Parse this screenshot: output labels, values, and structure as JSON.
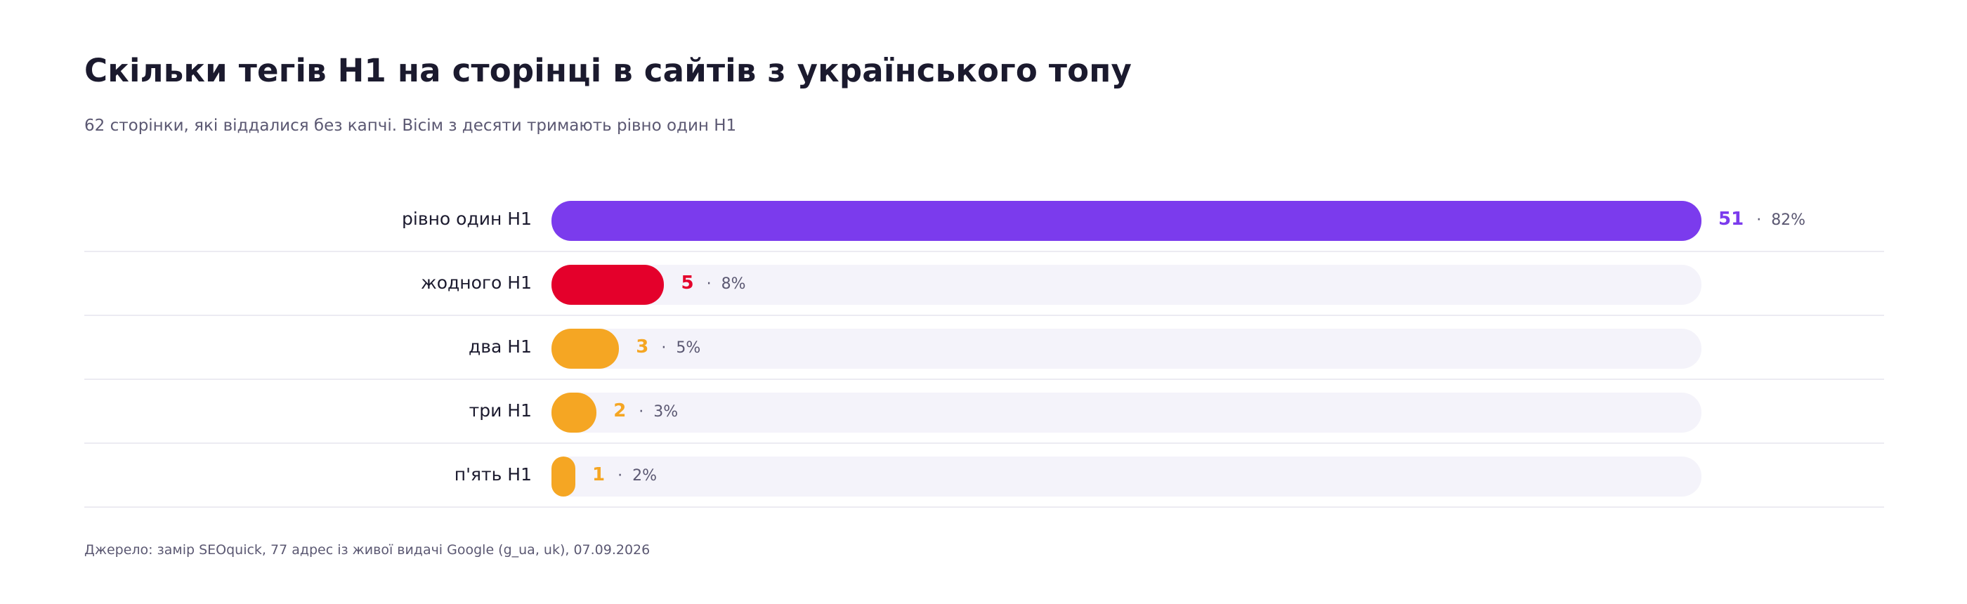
{
  "header": {
    "title": "Скільки тегів H1 на сторінці в сайтів з українського топу",
    "subtitle": "62 сторінки, які віддалися без капчі. Вісім з десяти тримають рівно один H1"
  },
  "footer": {
    "source": "Джерело: замір SEOquick, 77 адрес із живої видачі Google (g_ua, uk), 07.09.2026"
  },
  "chart_data": {
    "type": "bar",
    "orientation": "horizontal",
    "title": "Скільки тегів H1 на сторінці в сайтів з українського топу",
    "subtitle": "62 сторінки, які віддалися без капчі. Вісім з десяти тримають рівно один H1",
    "xlabel": "",
    "ylabel": "",
    "xlim": [
      0,
      51
    ],
    "grid": false,
    "categories": [
      "рівно один H1",
      "жодного H1",
      "два H1",
      "три H1",
      "п'ять H1"
    ],
    "values": [
      51,
      5,
      3,
      2,
      1
    ],
    "count_labels": [
      "51",
      "5",
      "3",
      "2",
      "1"
    ],
    "percent_labels": [
      "82%",
      "8%",
      "5%",
      "3%",
      "2%"
    ],
    "separator": "·",
    "colors": [
      "#7b3bed",
      "#e4002b",
      "#f5a623",
      "#f5a623",
      "#f5a623"
    ],
    "track_color": "#f4f3fa"
  }
}
